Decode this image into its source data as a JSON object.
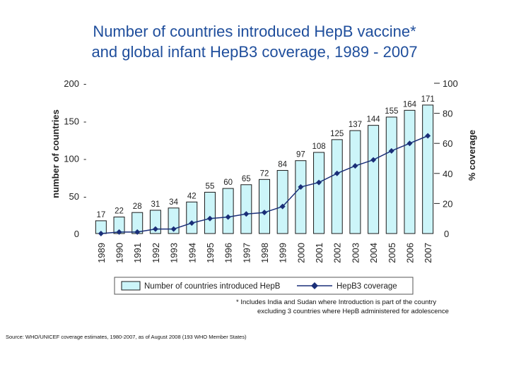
{
  "title_line1": "Number of countries introduced HepB vaccine*",
  "title_line2": "and global infant HepB3 coverage, 1989 - 2007",
  "footnote_line1": "* Includes India and Sudan where Introduction is part of the country",
  "footnote_line2": "excluding 3 countries where HepB  administered for adolescence",
  "source": "Source: WHO/UNICEF coverage estimates, 1980-2007, as of August 2008 (193 WHO Member States)",
  "colors": {
    "title": "#1f4e9c",
    "bar_fill": "#ccf5f9",
    "bar_stroke": "#1a1a1a",
    "line": "#1a2f78"
  },
  "chart_data": {
    "type": "bar+line",
    "categories": [
      "1989",
      "1990",
      "1991",
      "1992",
      "1993",
      "1994",
      "1995",
      "1996",
      "1997",
      "1998",
      "1999",
      "2000",
      "2001",
      "2002",
      "2003",
      "2004",
      "2005",
      "2006",
      "2007"
    ],
    "series": [
      {
        "name": "Number of countries introduced HepB",
        "type": "bar",
        "axis": "left",
        "values": [
          17,
          22,
          28,
          31,
          34,
          42,
          55,
          60,
          65,
          72,
          84,
          97,
          108,
          125,
          137,
          144,
          155,
          164,
          171
        ],
        "labels": [
          "17",
          "22",
          "28",
          "31",
          "34",
          "42",
          "55",
          "60",
          "65",
          "72",
          "84",
          "97",
          "108",
          "125",
          "137",
          "144",
          "155",
          "164",
          "171"
        ]
      },
      {
        "name": "HepB3 coverage",
        "type": "line",
        "axis": "right",
        "values": [
          0,
          1,
          1,
          3,
          3,
          7,
          10,
          11,
          13,
          14,
          18,
          31,
          34,
          40,
          45,
          49,
          55,
          60,
          65
        ]
      }
    ],
    "ylabel_left": "number of countries",
    "ylabel_right": "% coverage",
    "ylim_left": [
      0,
      200
    ],
    "ylim_right": [
      0,
      100
    ],
    "yticks_left": [
      "0",
      "50",
      "100",
      "150",
      "200"
    ],
    "yticks_right": [
      "0",
      "20",
      "40",
      "60",
      "80",
      "100"
    ],
    "legend_position": "bottom"
  }
}
